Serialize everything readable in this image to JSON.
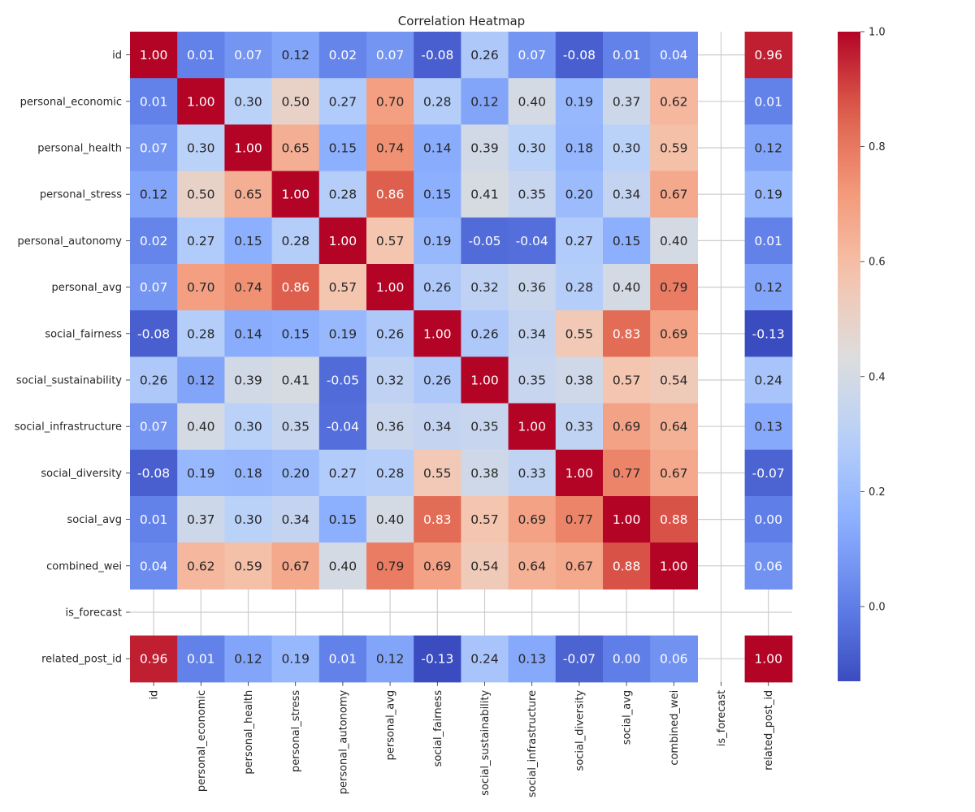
{
  "chart_data": {
    "type": "heatmap",
    "title": "Correlation Heatmap",
    "colormap": "coolwarm",
    "row_labels": [
      "id",
      "personal_economic",
      "personal_health",
      "personal_stress",
      "personal_autonomy",
      "personal_avg",
      "social_fairness",
      "social_sustainability",
      "social_infrastructure",
      "social_diversity",
      "social_avg",
      "combined_wei",
      "is_forecast",
      "related_post_id"
    ],
    "col_labels": [
      "id",
      "personal_economic",
      "personal_health",
      "personal_stress",
      "personal_autonomy",
      "personal_avg",
      "social_fairness",
      "social_sustainability",
      "social_infrastructure",
      "social_diversity",
      "social_avg",
      "combined_wei",
      "is_forecast",
      "related_post_id"
    ],
    "values": [
      [
        1.0,
        0.01,
        0.07,
        0.12,
        0.02,
        0.07,
        -0.08,
        0.26,
        0.07,
        -0.08,
        0.01,
        0.04,
        null,
        0.96
      ],
      [
        0.01,
        1.0,
        0.3,
        0.5,
        0.27,
        0.7,
        0.28,
        0.12,
        0.4,
        0.19,
        0.37,
        0.62,
        null,
        0.01
      ],
      [
        0.07,
        0.3,
        1.0,
        0.65,
        0.15,
        0.74,
        0.14,
        0.39,
        0.3,
        0.18,
        0.3,
        0.59,
        null,
        0.12
      ],
      [
        0.12,
        0.5,
        0.65,
        1.0,
        0.28,
        0.86,
        0.15,
        0.41,
        0.35,
        0.2,
        0.34,
        0.67,
        null,
        0.19
      ],
      [
        0.02,
        0.27,
        0.15,
        0.28,
        1.0,
        0.57,
        0.19,
        -0.05,
        -0.04,
        0.27,
        0.15,
        0.4,
        null,
        0.01
      ],
      [
        0.07,
        0.7,
        0.74,
        0.86,
        0.57,
        1.0,
        0.26,
        0.32,
        0.36,
        0.28,
        0.4,
        0.79,
        null,
        0.12
      ],
      [
        -0.08,
        0.28,
        0.14,
        0.15,
        0.19,
        0.26,
        1.0,
        0.26,
        0.34,
        0.55,
        0.83,
        0.69,
        null,
        -0.13
      ],
      [
        0.26,
        0.12,
        0.39,
        0.41,
        -0.05,
        0.32,
        0.26,
        1.0,
        0.35,
        0.38,
        0.57,
        0.54,
        null,
        0.24
      ],
      [
        0.07,
        0.4,
        0.3,
        0.35,
        -0.04,
        0.36,
        0.34,
        0.35,
        1.0,
        0.33,
        0.69,
        0.64,
        null,
        0.13
      ],
      [
        -0.08,
        0.19,
        0.18,
        0.2,
        0.27,
        0.28,
        0.55,
        0.38,
        0.33,
        1.0,
        0.77,
        0.67,
        null,
        -0.07
      ],
      [
        0.01,
        0.37,
        0.3,
        0.34,
        0.15,
        0.4,
        0.83,
        0.57,
        0.69,
        0.77,
        1.0,
        0.88,
        null,
        0.0
      ],
      [
        0.04,
        0.62,
        0.59,
        0.67,
        0.4,
        0.79,
        0.69,
        0.54,
        0.64,
        0.67,
        0.88,
        1.0,
        null,
        0.06
      ],
      [
        null,
        null,
        null,
        null,
        null,
        null,
        null,
        null,
        null,
        null,
        null,
        null,
        null,
        null
      ],
      [
        0.96,
        0.01,
        0.12,
        0.19,
        0.01,
        0.12,
        -0.13,
        0.24,
        0.13,
        -0.07,
        0.0,
        0.06,
        null,
        1.0
      ]
    ],
    "value_format": "0.00",
    "colorbar": {
      "min": -0.13,
      "max": 1.0,
      "ticks": [
        0.0,
        0.2,
        0.4,
        0.6,
        0.8,
        1.0
      ],
      "tick_labels": [
        "0.0",
        "0.2",
        "0.4",
        "0.6",
        "0.8",
        "1.0"
      ]
    },
    "grid": true,
    "xlabel": "",
    "ylabel": ""
  }
}
